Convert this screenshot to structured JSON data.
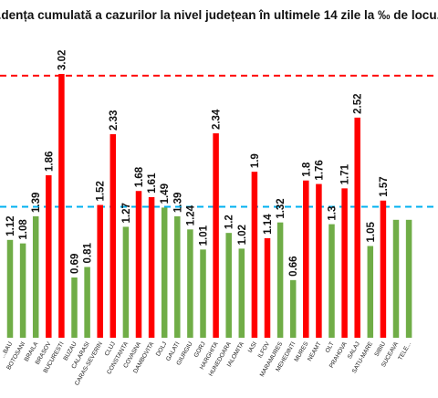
{
  "chart_data": {
    "type": "bar",
    "title": "...dența cumulată a cazurilor la nivel județean în ultimele 14 zile la ‰ de locu...",
    "categories": [
      "...BAU",
      "BOTOSANI",
      "BRAILA",
      "BRASOV",
      "BUCURESTI",
      "BUZAU",
      "CALARASI",
      "CARAS-SEVERIN",
      "CLUJ",
      "CONSTANTA",
      "COVASNA",
      "DAMBOVITA",
      "DOLJ",
      "GALATI",
      "GIURGIU",
      "GORJ",
      "HARGHITA",
      "HUNEDOARA",
      "IALOMITA",
      "IASI",
      "ILFOV",
      "MARAMURES",
      "MEHEDINTI",
      "MURES",
      "NEAMT",
      "OLT",
      "PRAHOVA",
      "SALAJ",
      "SATU-MARE",
      "SIBIU",
      "SUCEAVA",
      "TELE..."
    ],
    "values": [
      1.12,
      1.08,
      1.39,
      1.86,
      3.02,
      0.69,
      0.81,
      1.52,
      2.33,
      1.27,
      1.68,
      1.61,
      1.49,
      1.39,
      1.24,
      1.01,
      2.34,
      1.2,
      1.02,
      1.9,
      1.14,
      1.32,
      0.66,
      1.8,
      1.76,
      1.3,
      1.71,
      2.52,
      1.05,
      1.57,
      1.35,
      1.35
    ],
    "labels": [
      "1.12",
      "1.08",
      "1.39",
      "1.86",
      "3.02",
      "0.69",
      "0.81",
      "1.52",
      "2.33",
      "1.27",
      "1.68",
      "1.61",
      "1.49",
      "1.39",
      "1.24",
      "1.01",
      "2.34",
      "1.2",
      "1.02",
      "1.9",
      "1.14",
      "1.32",
      "0.66",
      "1.8",
      "1.76",
      "1.3",
      "1.71",
      "2.52",
      "1.05",
      "1.57",
      "",
      ""
    ],
    "colors": [
      "green",
      "green",
      "green",
      "red",
      "red",
      "green",
      "green",
      "red",
      "red",
      "green",
      "red",
      "red",
      "green",
      "green",
      "green",
      "green",
      "red",
      "green",
      "green",
      "red",
      "red",
      "green",
      "green",
      "red",
      "red",
      "green",
      "red",
      "red",
      "green",
      "red",
      "green",
      "green"
    ],
    "palette": {
      "red": "#ff0000",
      "green": "#70ad47",
      "red_line": "#ff0000",
      "blue_line": "#00b0f0"
    },
    "reference_lines": [
      {
        "value": 3.0,
        "color": "red_line",
        "style": "dashed"
      },
      {
        "value": 1.5,
        "color": "blue_line",
        "style": "dashed"
      }
    ],
    "ylim": [
      0,
      3.6
    ],
    "xlabel": "",
    "ylabel": "",
    "grid": false,
    "legend": "none"
  }
}
